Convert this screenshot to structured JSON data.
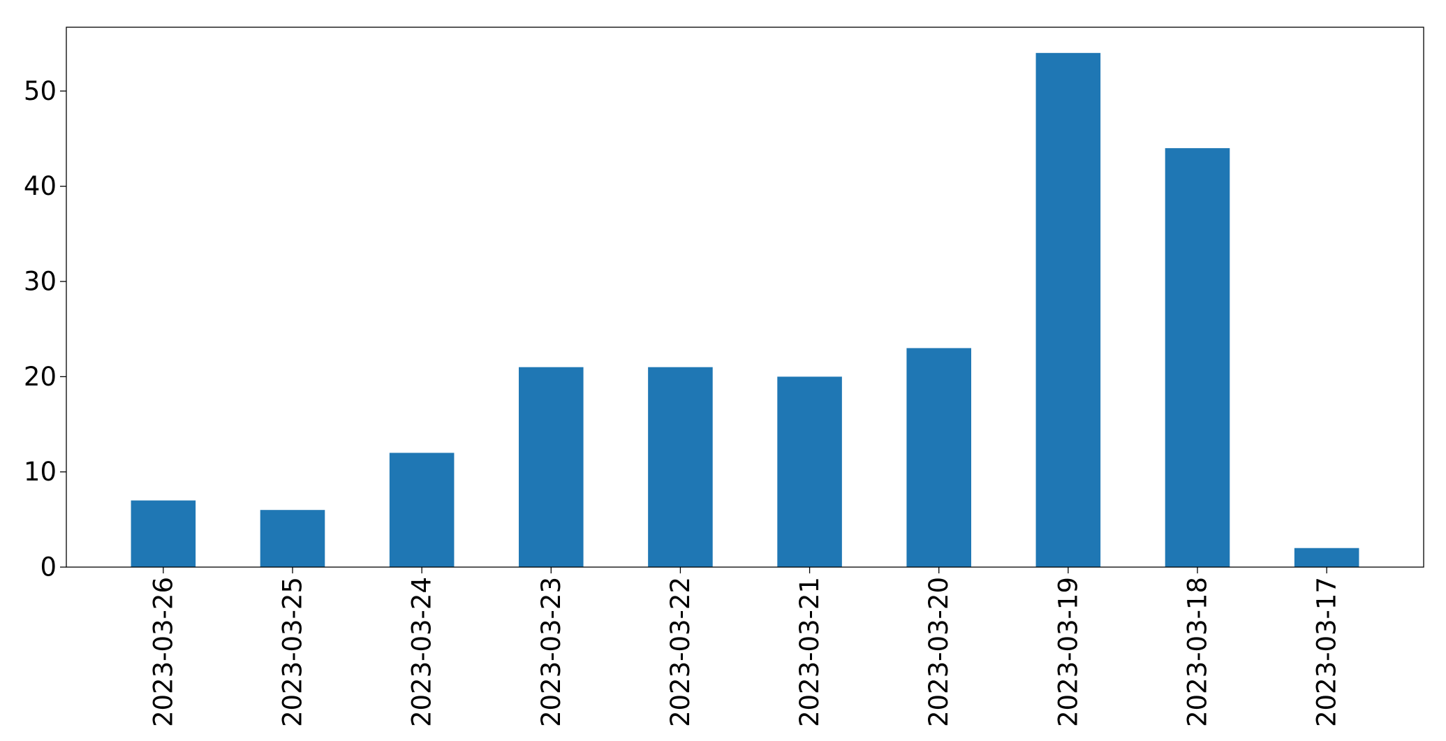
{
  "chart_data": {
    "type": "bar",
    "title": "",
    "xlabel": "",
    "ylabel": "",
    "categories": [
      "2023-03-26",
      "2023-03-25",
      "2023-03-24",
      "2023-03-23",
      "2023-03-22",
      "2023-03-21",
      "2023-03-20",
      "2023-03-19",
      "2023-03-18",
      "2023-03-17"
    ],
    "values": [
      7,
      6,
      12,
      21,
      21,
      20,
      23,
      54,
      44,
      2
    ],
    "ylim": [
      0,
      56.7
    ],
    "yticks": [
      "0",
      "10",
      "20",
      "30",
      "40",
      "50"
    ],
    "bar_color": "#1f77b4",
    "grid": false,
    "legend": "none"
  }
}
